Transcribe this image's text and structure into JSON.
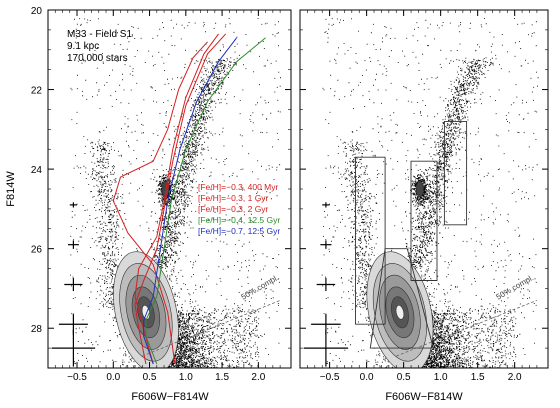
{
  "chart_data": [
    {
      "type": "scatter",
      "title": "",
      "annotation_lines": [
        "M33 - Field S1",
        "9.1 kpc",
        "170,000 stars"
      ],
      "xlabel": "F606W−F814W",
      "ylabel": "F814W",
      "xlim": [
        -0.9,
        2.45
      ],
      "ylim": [
        29.0,
        20.0
      ],
      "y_inverted": true,
      "x_ticks": [
        -0.5,
        0.0,
        0.5,
        1.0,
        1.5,
        2.0
      ],
      "x_tick_labels": [
        "−0.5",
        "0.0",
        "0.5",
        "1.0",
        "1.5",
        "2.0"
      ],
      "y_ticks": [
        20,
        22,
        24,
        26,
        28
      ],
      "y_tick_labels": [
        "20",
        "22",
        "24",
        "26",
        "28"
      ],
      "completeness_label": "50% compl.",
      "completeness_line": [
        {
          "x": 0.4,
          "y": 28.7
        },
        {
          "x": 2.3,
          "y": 27.3
        }
      ],
      "legend_placement": "center-right",
      "series": [
        {
          "name": "[Fe/H]=−0.3, 400 Myr",
          "color": "#d42020",
          "points": [
            {
              "x": 0.85,
              "y": 28.9
            },
            {
              "x": 0.75,
              "y": 27.6
            },
            {
              "x": 0.55,
              "y": 26.4
            },
            {
              "x": 0.2,
              "y": 25.6
            },
            {
              "x": 0.0,
              "y": 24.8
            },
            {
              "x": 0.1,
              "y": 24.2
            },
            {
              "x": 0.55,
              "y": 23.8
            },
            {
              "x": 0.75,
              "y": 23.0
            },
            {
              "x": 0.9,
              "y": 22.0
            },
            {
              "x": 1.1,
              "y": 21.2
            },
            {
              "x": 1.3,
              "y": 20.8
            }
          ]
        },
        {
          "name": "[Fe/H]=−0.3, 1 Gyr",
          "color": "#d42020",
          "points": [
            {
              "x": 0.55,
              "y": 28.9
            },
            {
              "x": 0.4,
              "y": 27.9
            },
            {
              "x": 0.3,
              "y": 27.2
            },
            {
              "x": 0.35,
              "y": 26.5
            },
            {
              "x": 0.6,
              "y": 25.7
            },
            {
              "x": 0.7,
              "y": 24.8
            },
            {
              "x": 0.82,
              "y": 23.5
            },
            {
              "x": 1.0,
              "y": 22.2
            },
            {
              "x": 1.25,
              "y": 21.1
            },
            {
              "x": 1.45,
              "y": 20.6
            }
          ]
        },
        {
          "name": "[Fe/H]=−0.3, 2 Gyr",
          "color": "#d42020",
          "points": [
            {
              "x": 0.45,
              "y": 28.9
            },
            {
              "x": 0.35,
              "y": 28.0
            },
            {
              "x": 0.3,
              "y": 27.4
            },
            {
              "x": 0.42,
              "y": 26.8
            },
            {
              "x": 0.6,
              "y": 26.0
            },
            {
              "x": 0.7,
              "y": 25.0
            },
            {
              "x": 0.82,
              "y": 23.8
            },
            {
              "x": 1.0,
              "y": 22.4
            },
            {
              "x": 1.3,
              "y": 21.1
            },
            {
              "x": 1.55,
              "y": 20.6
            }
          ]
        },
        {
          "name": "[Fe/H]=−0.4, 12.5 Gyr",
          "color": "#2e8b2e",
          "points": [
            {
              "x": 0.6,
              "y": 28.9
            },
            {
              "x": 0.45,
              "y": 28.2
            },
            {
              "x": 0.45,
              "y": 27.8
            },
            {
              "x": 0.6,
              "y": 27.2
            },
            {
              "x": 0.7,
              "y": 26.0
            },
            {
              "x": 0.8,
              "y": 24.8
            },
            {
              "x": 1.0,
              "y": 23.5
            },
            {
              "x": 1.3,
              "y": 22.3
            },
            {
              "x": 1.7,
              "y": 21.3
            },
            {
              "x": 2.1,
              "y": 20.7
            }
          ]
        },
        {
          "name": "[Fe/H]=−0.7, 12.5 Gyr",
          "color": "#2030c0",
          "points": [
            {
              "x": 0.55,
              "y": 28.9
            },
            {
              "x": 0.42,
              "y": 28.2
            },
            {
              "x": 0.42,
              "y": 27.8
            },
            {
              "x": 0.55,
              "y": 27.2
            },
            {
              "x": 0.65,
              "y": 26.0
            },
            {
              "x": 0.75,
              "y": 24.8
            },
            {
              "x": 0.92,
              "y": 23.5
            },
            {
              "x": 1.15,
              "y": 22.3
            },
            {
              "x": 1.45,
              "y": 21.3
            },
            {
              "x": 1.7,
              "y": 20.7
            }
          ]
        }
      ]
    },
    {
      "type": "scatter",
      "title": "",
      "xlabel": "F606W−F814W",
      "ylabel": "",
      "xlim": [
        -0.9,
        2.45
      ],
      "ylim": [
        29.0,
        20.0
      ],
      "y_inverted": true,
      "x_ticks": [
        -0.5,
        0.0,
        0.5,
        1.0,
        1.5,
        2.0
      ],
      "x_tick_labels": [
        "−0.5",
        "0.0",
        "0.5",
        "1.0",
        "1.5",
        "2.0"
      ],
      "completeness_label": "50% compl.",
      "completeness_line": [
        {
          "x": 0.4,
          "y": 28.7
        },
        {
          "x": 2.3,
          "y": 27.3
        }
      ]
    }
  ]
}
